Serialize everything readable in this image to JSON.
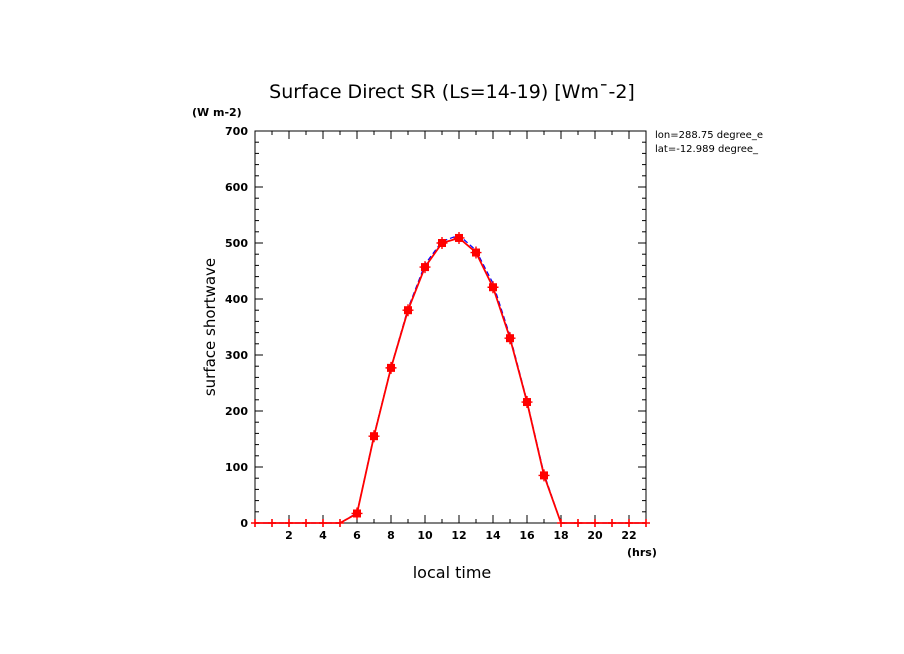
{
  "chart_data": {
    "type": "line",
    "title": "Surface Direct SR (Ls=14-19) [Wm¯-2]",
    "ylabel": "surface shortwave",
    "yunit": "(W m-2)",
    "xlabel": "local time",
    "xunit": "(hrs)",
    "annotations": [
      "lon=288.75 degree_e",
      "lat=-12.989 degree_"
    ],
    "xlim": [
      0,
      23
    ],
    "ylim": [
      0,
      700
    ],
    "x_ticks": [
      2,
      4,
      6,
      8,
      10,
      12,
      14,
      16,
      18,
      20,
      22
    ],
    "y_ticks": [
      0,
      100,
      200,
      300,
      400,
      500,
      600,
      700
    ],
    "colors": {
      "primary": "#ff0000",
      "secondary": "#0000ff"
    },
    "series": [
      {
        "style": "dashed",
        "color": "#0000ff",
        "x": [
          0,
          1,
          2,
          3,
          4,
          5,
          6,
          7,
          8,
          9,
          10,
          11,
          12,
          13,
          14,
          15,
          16,
          17,
          18,
          19,
          20,
          21,
          22,
          23
        ],
        "y": [
          0,
          0,
          0,
          0,
          0,
          0,
          18,
          157,
          278,
          383,
          462,
          503,
          514,
          487,
          428,
          334,
          218,
          88,
          0,
          0,
          0,
          0,
          0,
          0
        ]
      },
      {
        "style": "solid-markers",
        "color": "#ff0000",
        "x": [
          0,
          1,
          2,
          3,
          4,
          5,
          6,
          7,
          8,
          9,
          10,
          11,
          12,
          13,
          14,
          15,
          16,
          17,
          18,
          19,
          20,
          21,
          22,
          23
        ],
        "y": [
          0,
          0,
          0,
          0,
          0,
          0,
          17,
          155,
          277,
          380,
          457,
          500,
          509,
          483,
          421,
          330,
          216,
          85,
          0,
          0,
          0,
          0,
          0,
          0
        ]
      }
    ]
  }
}
